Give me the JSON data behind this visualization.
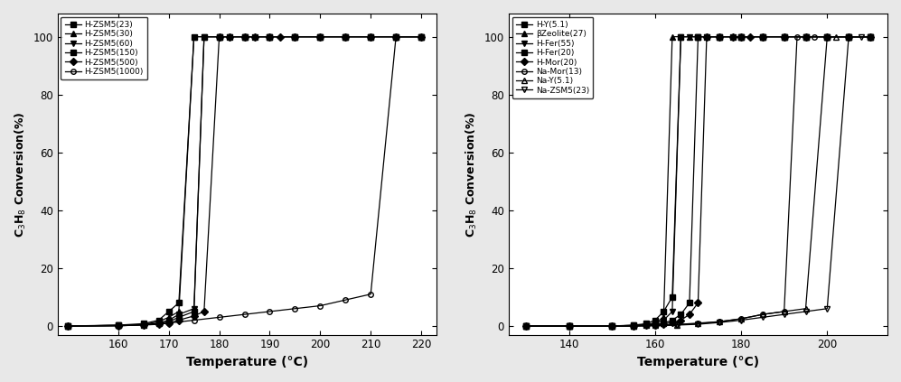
{
  "left_plot": {
    "xlabel": "Temperature (°C)",
    "ylabel": "C$_3$H$_8$ Conversion(%)",
    "xlim": [
      148,
      223
    ],
    "ylim": [
      -3,
      108
    ],
    "xticks": [
      160,
      170,
      180,
      190,
      200,
      210,
      220
    ],
    "yticks": [
      0,
      20,
      40,
      60,
      80,
      100
    ],
    "series": [
      {
        "label": "H-ZSM5(23)",
        "marker": "s",
        "fillstyle": "full",
        "color": "#000000",
        "x": [
          150,
          160,
          165,
          168,
          170,
          172,
          175,
          180,
          185,
          190,
          195,
          200,
          205,
          210,
          215,
          220
        ],
        "y": [
          0,
          0.3,
          0.8,
          2,
          5,
          8,
          100,
          100,
          100,
          100,
          100,
          100,
          100,
          100,
          100,
          100
        ]
      },
      {
        "label": "H-ZSM5(30)",
        "marker": "^",
        "fillstyle": "full",
        "color": "#000000",
        "x": [
          150,
          160,
          165,
          168,
          170,
          172,
          175,
          177,
          180,
          185,
          190,
          195,
          200,
          205,
          210,
          215,
          220
        ],
        "y": [
          0,
          0.2,
          0.5,
          1.5,
          3,
          5,
          100,
          100,
          100,
          100,
          100,
          100,
          100,
          100,
          100,
          100,
          100
        ]
      },
      {
        "label": "H-ZSM5(60)",
        "marker": "v",
        "fillstyle": "full",
        "color": "#000000",
        "x": [
          150,
          160,
          165,
          168,
          170,
          172,
          175,
          177,
          180,
          182,
          185,
          190,
          195,
          200,
          205,
          210,
          215,
          220
        ],
        "y": [
          0,
          0.2,
          0.5,
          1,
          2,
          4,
          6,
          100,
          100,
          100,
          100,
          100,
          100,
          100,
          100,
          100,
          100,
          100
        ]
      },
      {
        "label": "H-ZSM5(150)",
        "marker": "s",
        "fillstyle": "full",
        "color": "#000000",
        "x": [
          150,
          160,
          165,
          168,
          170,
          172,
          175,
          177,
          180,
          182,
          185,
          187,
          190,
          195,
          200,
          205,
          210,
          215,
          220
        ],
        "y": [
          0,
          0.2,
          0.4,
          0.8,
          1.5,
          3,
          5,
          100,
          100,
          100,
          100,
          100,
          100,
          100,
          100,
          100,
          100,
          100,
          100
        ]
      },
      {
        "label": "H-ZSM5(500)",
        "marker": "D",
        "fillstyle": "full",
        "color": "#000000",
        "x": [
          150,
          160,
          165,
          168,
          170,
          172,
          175,
          177,
          180,
          182,
          185,
          187,
          190,
          192,
          195,
          200,
          205,
          210,
          215,
          220
        ],
        "y": [
          0,
          0.1,
          0.3,
          0.6,
          1,
          2,
          3.5,
          5,
          100,
          100,
          100,
          100,
          100,
          100,
          100,
          100,
          100,
          100,
          100,
          100
        ]
      },
      {
        "label": "H-ZSM5(1000)",
        "marker": "o",
        "fillstyle": "none",
        "color": "#000000",
        "x": [
          150,
          160,
          165,
          170,
          175,
          180,
          185,
          190,
          195,
          200,
          205,
          210,
          215,
          220
        ],
        "y": [
          0,
          0,
          0.5,
          1,
          2,
          3,
          4,
          5,
          6,
          7,
          9,
          11,
          100,
          100
        ]
      }
    ]
  },
  "right_plot": {
    "xlabel": "Temperature (°C)",
    "ylabel": "C$_3$H$_8$ Conversion(%)",
    "xlim": [
      126,
      214
    ],
    "ylim": [
      -3,
      108
    ],
    "xticks": [
      140,
      160,
      180,
      200
    ],
    "yticks": [
      0,
      20,
      40,
      60,
      80,
      100
    ],
    "series": [
      {
        "label": "H-Y(5.1)",
        "marker": "s",
        "fillstyle": "full",
        "color": "#000000",
        "x": [
          130,
          140,
          150,
          155,
          158,
          160,
          162,
          164,
          166,
          170,
          175,
          180,
          185,
          190,
          195,
          200,
          205,
          210
        ],
        "y": [
          0,
          0,
          0,
          0.3,
          0.8,
          2,
          5,
          10,
          100,
          100,
          100,
          100,
          100,
          100,
          100,
          100,
          100,
          100
        ]
      },
      {
        "label": "βZeolite(27)",
        "marker": "^",
        "fillstyle": "full",
        "color": "#000000",
        "x": [
          130,
          140,
          150,
          155,
          158,
          160,
          162,
          164,
          166,
          168,
          170,
          175,
          180,
          185,
          190,
          195,
          200,
          205,
          210
        ],
        "y": [
          0,
          0,
          0,
          0.2,
          0.5,
          1,
          3,
          100,
          100,
          100,
          100,
          100,
          100,
          100,
          100,
          100,
          100,
          100,
          100
        ]
      },
      {
        "label": "H-Fer(55)",
        "marker": "v",
        "fillstyle": "full",
        "color": "#000000",
        "x": [
          130,
          140,
          150,
          155,
          158,
          160,
          162,
          164,
          166,
          168,
          170,
          172,
          175,
          180,
          185,
          190,
          195,
          200,
          205,
          210
        ],
        "y": [
          0,
          0,
          0,
          0.2,
          0.5,
          1,
          2,
          5,
          100,
          100,
          100,
          100,
          100,
          100,
          100,
          100,
          100,
          100,
          100,
          100
        ]
      },
      {
        "label": "H-Fer(20)",
        "marker": "s",
        "fillstyle": "full",
        "color": "#000000",
        "x": [
          130,
          140,
          150,
          155,
          158,
          160,
          162,
          164,
          166,
          168,
          170,
          172,
          175,
          178,
          180,
          185,
          190,
          195,
          200,
          205,
          210
        ],
        "y": [
          0,
          0,
          0,
          0.1,
          0.3,
          0.6,
          1,
          2,
          4,
          8,
          100,
          100,
          100,
          100,
          100,
          100,
          100,
          100,
          100,
          100,
          100
        ]
      },
      {
        "label": "H-Mor(20)",
        "marker": "D",
        "fillstyle": "full",
        "color": "#000000",
        "x": [
          130,
          140,
          150,
          155,
          158,
          160,
          162,
          164,
          166,
          168,
          170,
          172,
          175,
          178,
          180,
          182,
          185,
          190,
          195,
          200,
          205,
          210
        ],
        "y": [
          0,
          0,
          0,
          0.1,
          0.2,
          0.4,
          0.7,
          1.2,
          2,
          4,
          8,
          100,
          100,
          100,
          100,
          100,
          100,
          100,
          100,
          100,
          100,
          100
        ]
      },
      {
        "label": "Na-Mor(13)",
        "marker": "o",
        "fillstyle": "none",
        "color": "#000000",
        "x": [
          130,
          140,
          150,
          155,
          160,
          165,
          170,
          175,
          180,
          185,
          190,
          193,
          195,
          197,
          200,
          205,
          210
        ],
        "y": [
          0,
          0,
          0,
          0,
          0.2,
          0.5,
          1,
          1.5,
          2.5,
          4,
          5,
          100,
          100,
          100,
          100,
          100,
          100
        ]
      },
      {
        "label": "Na-Y(5.1)",
        "marker": "^",
        "fillstyle": "none",
        "color": "#000000",
        "x": [
          130,
          140,
          150,
          155,
          160,
          165,
          170,
          175,
          180,
          185,
          190,
          195,
          200,
          202,
          205,
          210
        ],
        "y": [
          0,
          0,
          0,
          0,
          0.2,
          0.4,
          0.8,
          1.5,
          2.5,
          4,
          5,
          6,
          100,
          100,
          100,
          100
        ]
      },
      {
        "label": "Na-ZSM5(23)",
        "marker": "v",
        "fillstyle": "none",
        "color": "#000000",
        "x": [
          130,
          140,
          150,
          155,
          160,
          165,
          170,
          175,
          180,
          185,
          190,
          195,
          200,
          205,
          208,
          210
        ],
        "y": [
          0,
          0,
          0,
          0,
          0.1,
          0.3,
          0.6,
          1.2,
          2,
          3,
          4,
          5,
          6,
          100,
          100,
          100
        ]
      }
    ]
  },
  "bg_color": "#e8e8e8",
  "plot_bg": "#ffffff"
}
